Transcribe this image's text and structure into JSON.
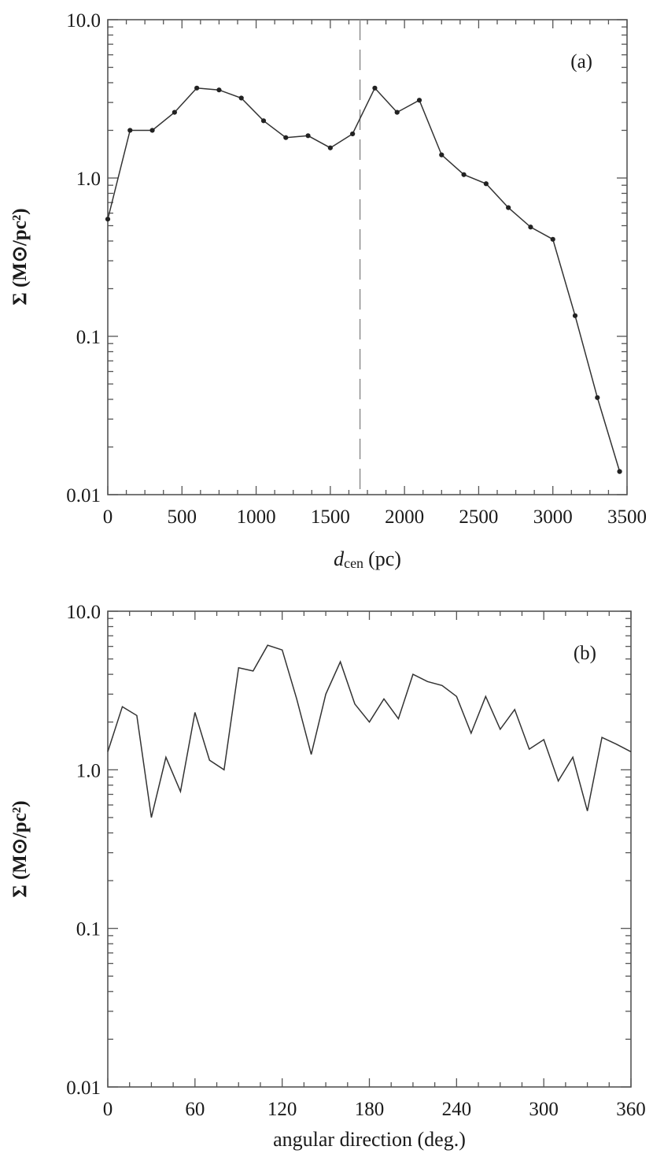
{
  "chart_data": [
    {
      "id": "a",
      "type": "line",
      "panel_label": "(a)",
      "title": "",
      "xlabel_main": "d",
      "xlabel_sub": "cen",
      "xlabel_unit": "(pc)",
      "ylabel": "Σ (M⊙/pc²)",
      "xscale": "linear",
      "yscale": "log",
      "xlim": [
        0,
        3500
      ],
      "ylim": [
        0.01,
        10
      ],
      "xticks": [
        0,
        500,
        1000,
        1500,
        2000,
        2500,
        3000,
        3500
      ],
      "xtick_labels": [
        "0",
        "500",
        "1000",
        "1500",
        "2000",
        "2500",
        "3000",
        "3500"
      ],
      "yticks": [
        0.01,
        0.1,
        1,
        10
      ],
      "ytick_labels": [
        "0.01",
        "0.1",
        "1.0",
        "10.0"
      ],
      "markers": true,
      "vline_x": 1700,
      "series": [
        {
          "x": [
            0,
            150,
            300,
            450,
            600,
            750,
            900,
            1050,
            1200,
            1350,
            1500,
            1650,
            1800,
            1950,
            2100,
            2250,
            2400,
            2550,
            2700,
            2850,
            3000,
            3150,
            3300,
            3450
          ],
          "y": [
            0.55,
            2.0,
            2.0,
            2.6,
            3.7,
            3.6,
            3.2,
            2.3,
            1.8,
            1.85,
            1.55,
            1.9,
            3.7,
            2.6,
            3.1,
            1.4,
            1.05,
            0.92,
            0.65,
            0.49,
            0.41,
            0.135,
            0.041,
            0.014
          ]
        }
      ]
    },
    {
      "id": "b",
      "type": "line",
      "panel_label": "(b)",
      "title": "",
      "xlabel": "angular direction (deg.)",
      "ylabel": "Σ (M⊙/pc²)",
      "xscale": "linear",
      "yscale": "log",
      "xlim": [
        0,
        360
      ],
      "ylim": [
        0.01,
        10
      ],
      "xticks": [
        0,
        60,
        120,
        180,
        240,
        300,
        360
      ],
      "xtick_labels": [
        "0",
        "60",
        "120",
        "180",
        "240",
        "300",
        "360"
      ],
      "yticks": [
        0.01,
        0.1,
        1,
        10
      ],
      "ytick_labels": [
        "0.01",
        "0.1",
        "1.0",
        "10.0"
      ],
      "markers": false,
      "series": [
        {
          "x": [
            0,
            10,
            20,
            30,
            40,
            50,
            60,
            70,
            80,
            90,
            100,
            110,
            120,
            130,
            140,
            150,
            160,
            170,
            180,
            190,
            200,
            210,
            220,
            230,
            240,
            250,
            260,
            270,
            280,
            290,
            300,
            310,
            320,
            330,
            340,
            350,
            360
          ],
          "y": [
            1.3,
            2.5,
            2.2,
            0.5,
            1.2,
            0.73,
            2.3,
            1.15,
            1.0,
            4.4,
            4.2,
            6.1,
            5.7,
            2.8,
            1.25,
            3.0,
            4.8,
            2.6,
            2.0,
            2.8,
            2.1,
            4.0,
            3.6,
            3.4,
            2.9,
            1.7,
            2.9,
            1.8,
            2.4,
            1.35,
            1.55,
            0.85,
            1.2,
            0.55,
            1.6,
            1.45,
            1.3
          ]
        }
      ]
    }
  ]
}
